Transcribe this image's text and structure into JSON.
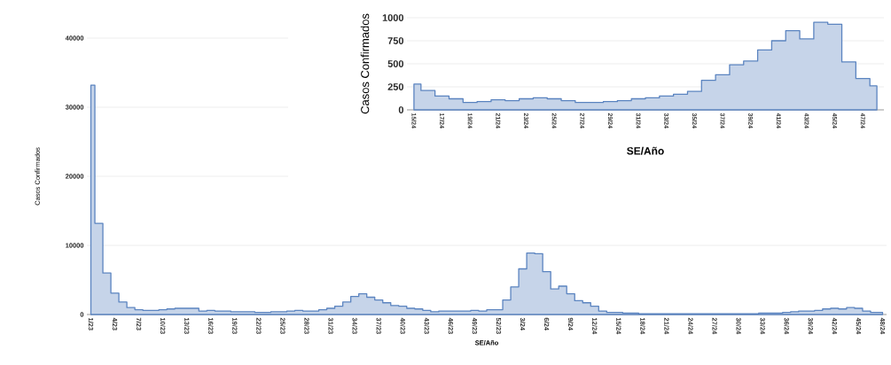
{
  "chart_data": [
    {
      "type": "area",
      "xlabel": "SE/Año",
      "ylabel": "Casos Confirmados",
      "color": "#5b84c0",
      "grid": "y",
      "ylim": [
        0,
        40000
      ],
      "yticks": [
        0,
        10000,
        20000,
        30000,
        40000
      ],
      "categories": [
        "1/23",
        null,
        null,
        "4/23",
        null,
        null,
        "7/23",
        null,
        null,
        "10/23",
        null,
        null,
        "13/23",
        null,
        null,
        "16/23",
        null,
        null,
        "19/23",
        null,
        null,
        "22/23",
        null,
        null,
        "25/23",
        null,
        null,
        "28/23",
        null,
        null,
        "31/23",
        null,
        null,
        "34/23",
        null,
        null,
        "37/23",
        null,
        null,
        "40/23",
        null,
        null,
        "43/23",
        null,
        null,
        "46/23",
        null,
        null,
        "49/23",
        null,
        null,
        "52/23",
        null,
        null,
        "3/24",
        null,
        null,
        "6/24",
        null,
        null,
        "9/24",
        null,
        null,
        "12/24",
        null,
        null,
        "15/24",
        null,
        null,
        "18/24",
        null,
        null,
        "21/24",
        null,
        null,
        "24/24",
        null,
        null,
        "27/24",
        null,
        null,
        "30/24",
        null,
        null,
        "33/24",
        null,
        null,
        "36/24",
        null,
        null,
        "39/24",
        null,
        null,
        "42/24",
        null,
        null,
        "45/24",
        null,
        null,
        "48/24"
      ],
      "values": [
        33200,
        13200,
        6000,
        3100,
        1800,
        1000,
        700,
        600,
        600,
        700,
        800,
        900,
        900,
        900,
        500,
        600,
        500,
        500,
        400,
        400,
        400,
        300,
        300,
        400,
        400,
        500,
        600,
        500,
        500,
        700,
        900,
        1200,
        1800,
        2600,
        3000,
        2500,
        2100,
        1700,
        1300,
        1200,
        900,
        800,
        600,
        400,
        500,
        500,
        500,
        500,
        600,
        500,
        700,
        700,
        2100,
        4000,
        6600,
        8900,
        8800,
        6200,
        3700,
        4100,
        3000,
        2000,
        1700,
        1200,
        500,
        300,
        300,
        200,
        200,
        100,
        100,
        100,
        100,
        100,
        100,
        100,
        100,
        100,
        100,
        100,
        100,
        100,
        100,
        100,
        200,
        200,
        200,
        300,
        400,
        500,
        500,
        600,
        800,
        900,
        800,
        1000,
        900,
        500,
        300,
        300
      ]
    },
    {
      "type": "area",
      "xlabel": "SE/Año",
      "ylabel": "Casos Confirmados",
      "color": "#5b84c0",
      "grid": "y",
      "ylim": [
        0,
        1000
      ],
      "yticks": [
        0,
        250,
        500,
        750,
        1000
      ],
      "categories": [
        "15/24",
        null,
        "17/24",
        null,
        "19/24",
        null,
        "21/24",
        null,
        "23/24",
        null,
        "25/24",
        null,
        "27/24",
        null,
        "29/24",
        null,
        "31/24",
        null,
        "33/24",
        null,
        "35/24",
        null,
        "37/24",
        null,
        "39/24",
        null,
        "41/24",
        null,
        "43/24",
        null,
        "45/24",
        null,
        "47/24",
        null
      ],
      "values": [
        280,
        210,
        150,
        120,
        80,
        90,
        110,
        100,
        120,
        130,
        120,
        100,
        80,
        80,
        90,
        100,
        120,
        130,
        150,
        170,
        200,
        320,
        380,
        490,
        530,
        650,
        750,
        860,
        770,
        950,
        930,
        520,
        340,
        260
      ]
    }
  ]
}
